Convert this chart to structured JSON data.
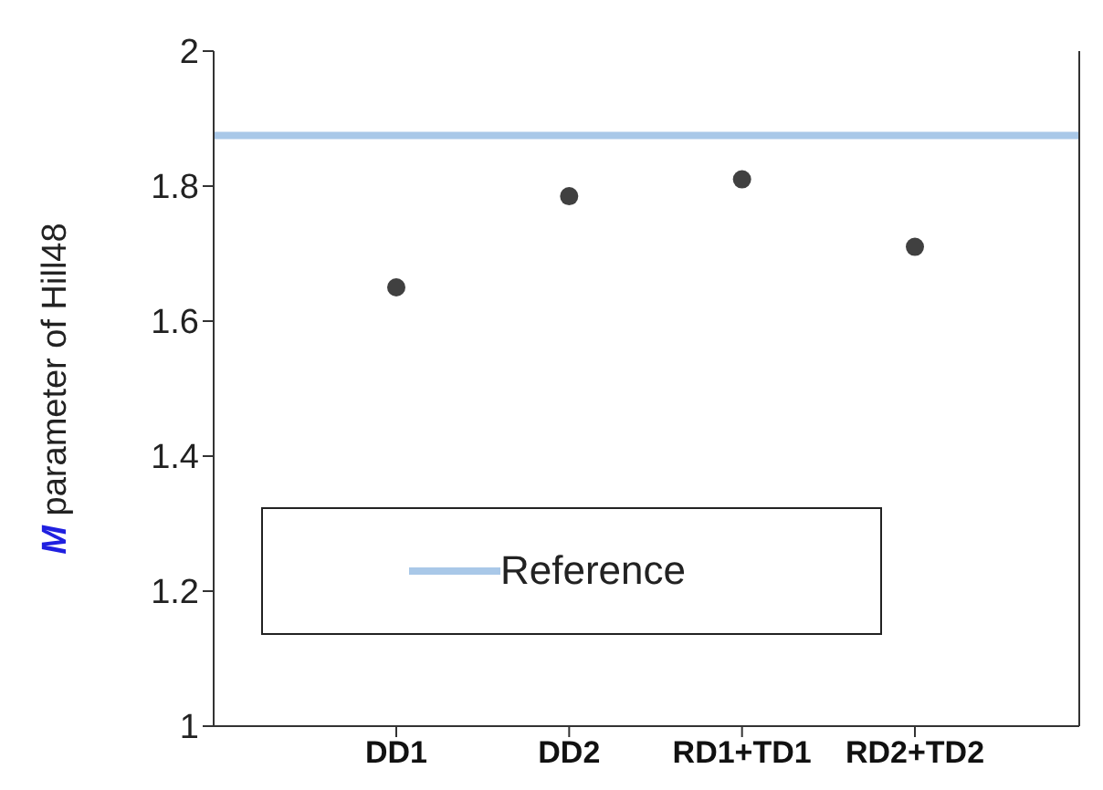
{
  "chart_data": {
    "type": "scatter",
    "ylabel": "M parameter of Hill48",
    "categories": [
      "DD1",
      "DD2",
      "RD1+TD1",
      "RD2+TD2"
    ],
    "series": [
      {
        "color": "#404040",
        "values": [
          1.65,
          1.785,
          1.81,
          1.71
        ]
      }
    ],
    "ylim": [
      1,
      2
    ],
    "yticks": [
      1,
      1.2,
      1.4,
      1.6,
      1.8,
      2
    ],
    "ref_lines": [
      {
        "axis": "y",
        "value": 1.875,
        "label": "Reference",
        "color": "#a9c8e8"
      }
    ],
    "marker": "circle",
    "grid": false,
    "legend": "bottom left"
  }
}
